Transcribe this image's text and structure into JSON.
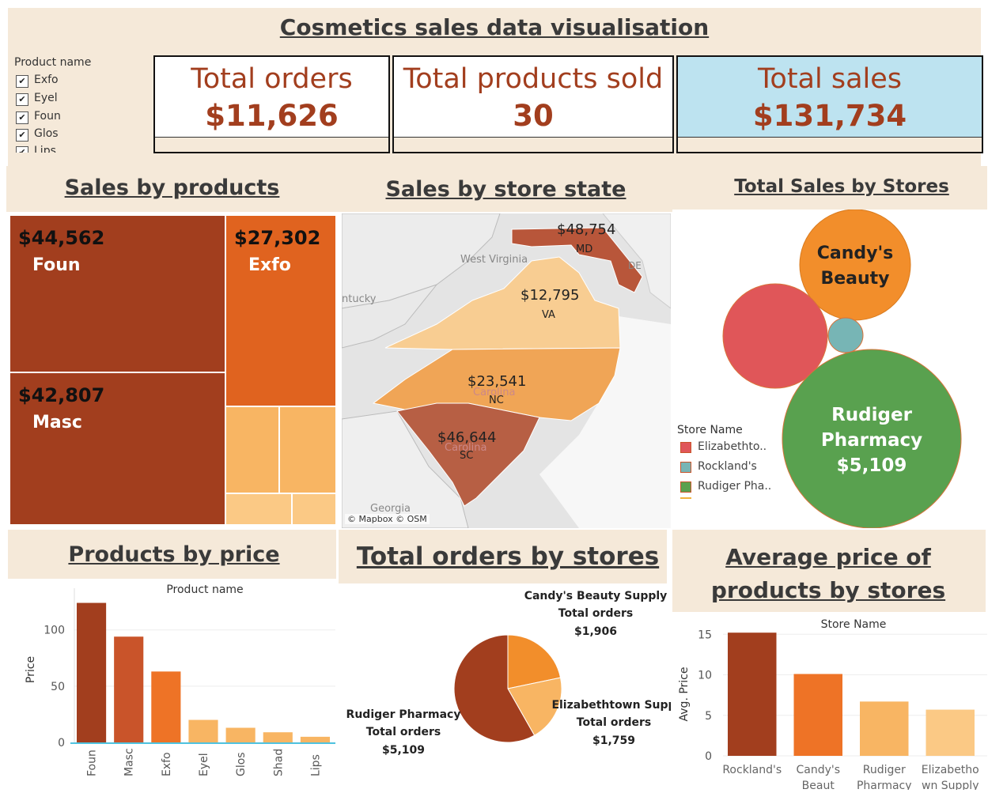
{
  "header": {
    "title": "Cosmetics sales data visualisation"
  },
  "filter": {
    "title": "Product name",
    "items": [
      "Exfo",
      "Eyel",
      "Foun",
      "Glos",
      "Lips"
    ]
  },
  "kpis": [
    {
      "label": "Total orders",
      "value": "$11,626"
    },
    {
      "label": "Total products sold",
      "value": "30"
    },
    {
      "label": "Total sales",
      "value": "$131,734"
    }
  ],
  "colors": {
    "dark": "#a23e1e",
    "mid": "#c9542a",
    "orange": "#ee7326",
    "light": "#f8b563",
    "pale": "#fbc985",
    "accent_blue": "#bde3f0",
    "store_red": "#e05659",
    "store_teal": "#77b5b5",
    "store_green": "#59a14f",
    "store_orange": "#f28e2b"
  },
  "sections": {
    "treemap_title": "Sales by products",
    "map_title": "Sales by store state",
    "bubble_title": "Total Sales by Stores",
    "price_title": "Products  by price",
    "pie_title": "Total orders by stores",
    "avg_title": "Average price of products by stores"
  },
  "treemap": {
    "items": [
      {
        "value": "$44,562",
        "name": "Foun"
      },
      {
        "value": "$42,807",
        "name": "Masc"
      },
      {
        "value": "$27,302",
        "name": "Exfo"
      }
    ]
  },
  "map": {
    "states": [
      {
        "value": "$48,754",
        "abbr": "MD"
      },
      {
        "value": "$12,795",
        "abbr": "VA"
      },
      {
        "value": "$23,541",
        "abbr": "NC"
      },
      {
        "value": "$46,644",
        "abbr": "SC"
      }
    ],
    "places": [
      "West Virginia",
      "ntucky",
      "DE",
      "Georgia",
      "Carolina",
      "Carolina"
    ],
    "credit": "© Mapbox © OSM"
  },
  "bubbles": {
    "legend_title": "Store Name",
    "legend": [
      {
        "label": "Elizabethto..",
        "color": "#e05659"
      },
      {
        "label": "Rockland's",
        "color": "#77b5b5"
      },
      {
        "label": "Rudiger Pha..",
        "color": "#59a14f"
      }
    ],
    "labels": [
      {
        "line1": "Candy's",
        "line2": "Beauty",
        "line3": ""
      },
      {
        "line1": "Rudiger",
        "line2": "Pharmacy",
        "line3": "$5,109"
      }
    ]
  },
  "chart_data": [
    {
      "type": "bar",
      "title": "Product name",
      "ylabel": "Price",
      "categories": [
        "Foun",
        "Masc",
        "Exfo",
        "Eyel",
        "Glos",
        "Shad",
        "Lips"
      ],
      "values": [
        124,
        94,
        63,
        20,
        13,
        9,
        5
      ],
      "ylim": [
        0,
        130
      ],
      "ticks": [
        0,
        50,
        100
      ]
    },
    {
      "type": "pie",
      "title": "Total orders by stores",
      "slices": [
        {
          "name": "Candy's Beauty Supply",
          "metric": "Total orders",
          "value": 1906,
          "label": "$1,906"
        },
        {
          "name": "Elizabethtown Supp",
          "metric": "Total orders",
          "value": 1759,
          "label": "$1,759"
        },
        {
          "name": "Rudiger Pharmacy",
          "metric": "Total orders",
          "value": 5109,
          "label": "$5,109"
        }
      ]
    },
    {
      "type": "bar",
      "title": "Store Name",
      "ylabel": "Avg. Price",
      "categories": [
        {
          "l1": "Rockland's",
          "l2": ""
        },
        {
          "l1": "Candy's",
          "l2": "Beaut"
        },
        {
          "l1": "Rudiger",
          "l2": "Pharmacy"
        },
        {
          "l1": "Elizabetho",
          "l2": "wn Supply"
        }
      ],
      "values": [
        15.2,
        10.1,
        6.7,
        5.7
      ],
      "ylim": [
        0,
        16
      ],
      "ticks": [
        0,
        5,
        10,
        15
      ]
    }
  ]
}
